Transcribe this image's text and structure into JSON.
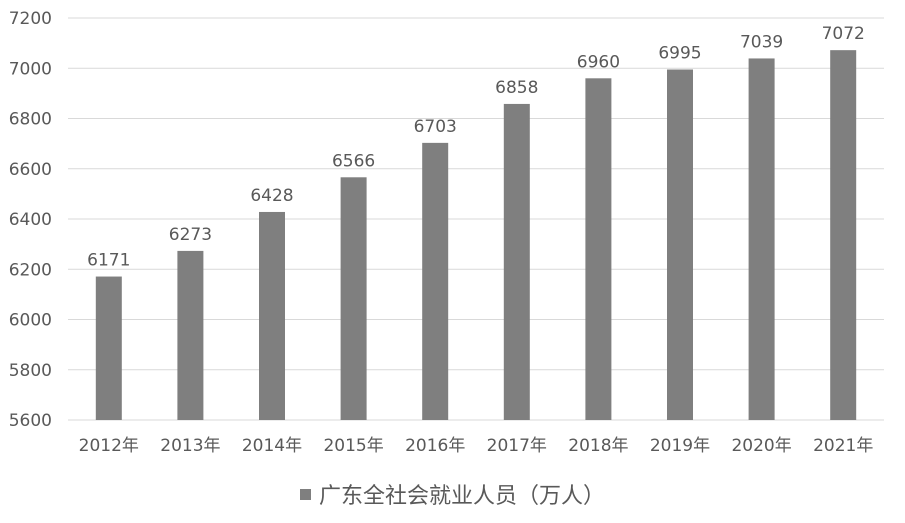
{
  "chart_data": {
    "type": "bar",
    "title": "",
    "xlabel": "",
    "ylabel": "",
    "categories": [
      "2012年",
      "2013年",
      "2014年",
      "2015年",
      "2016年",
      "2017年",
      "2018年",
      "2019年",
      "2020年",
      "2021年"
    ],
    "series": [
      {
        "name": "广东全社会就业人员（万人）",
        "values": [
          6171,
          6273,
          6428,
          6566,
          6703,
          6858,
          6960,
          6995,
          7039,
          7072
        ]
      }
    ],
    "ylim": [
      5600,
      7200
    ],
    "yticks": [
      5600,
      5800,
      6000,
      6200,
      6400,
      6600,
      6800,
      7000,
      7200
    ],
    "grid": true,
    "legend": "bottom",
    "data_labels": true,
    "bar_color": "#7f7f7f",
    "grid_color": "#d9d9d9",
    "text_color": "#595959"
  }
}
